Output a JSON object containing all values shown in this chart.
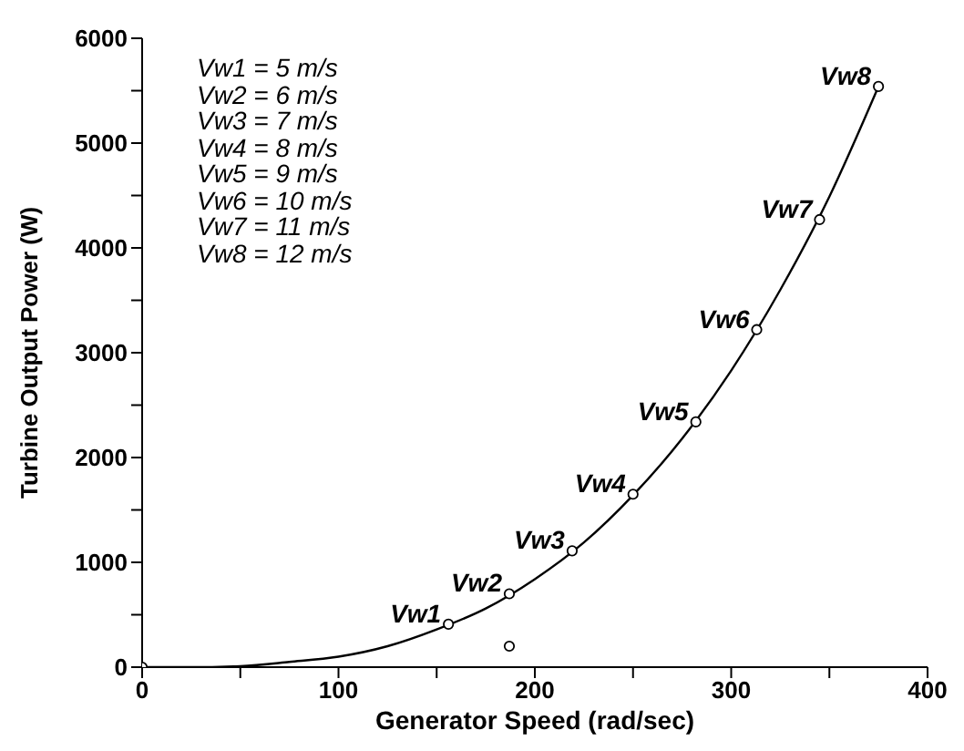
{
  "chart_data": {
    "type": "line",
    "xlabel": "Generator Speed (rad/sec)",
    "ylabel": "Turbine Output Power (W)",
    "xlim": [
      0,
      400
    ],
    "ylim": [
      0,
      6000
    ],
    "xticks": [
      0,
      {
        "value": 50,
        "label": null
      },
      100,
      {
        "value": 150,
        "label": null
      },
      200,
      {
        "value": 250,
        "label": null
      },
      300,
      {
        "value": 350,
        "label": null
      },
      400
    ],
    "yticks": [
      0,
      {
        "value": 500,
        "label": null
      },
      1000,
      {
        "value": 1500,
        "label": null
      },
      2000,
      {
        "value": 2500,
        "label": null
      },
      3000,
      {
        "value": 3500,
        "label": null
      },
      4000,
      {
        "value": 4500,
        "label": null
      },
      5000,
      {
        "value": 5500,
        "label": null
      },
      6000
    ],
    "grid": false,
    "series": [
      {
        "type": "line",
        "color": "#000000",
        "marker": "none",
        "x": [
          0,
          25,
          50,
          75,
          100,
          125,
          150,
          175,
          200,
          225,
          250,
          275,
          300,
          325,
          350,
          375
        ],
        "values": [
          0,
          0,
          10,
          50,
          100,
          200,
          360,
          560,
          840,
          1190,
          1640,
          2180,
          2830,
          3600,
          4490,
          5540
        ]
      },
      {
        "type": "scatter",
        "color": "#000000",
        "marker": "circle",
        "x": [
          0,
          156,
          187,
          219,
          250,
          282,
          313,
          345,
          375,
          187
        ],
        "values": [
          0,
          410,
          700,
          1110,
          1650,
          2340,
          3220,
          4270,
          5540,
          200
        ]
      }
    ],
    "annotations": [
      "Vw1 = 5 m/s",
      "Vw2 = 6 m/s",
      "Vw3 = 7 m/s",
      "Vw4 = 8 m/s",
      "Vw5 = 9 m/s",
      "Vw6 = 10 m/s",
      "Vw7 = 11 m/s",
      "Vw8 = 12 m/s",
      {
        "text": "Vw1",
        "x": 156,
        "y": 410
      },
      {
        "text": "Vw2",
        "x": 187,
        "y": 700
      },
      {
        "text": "Vw3",
        "x": 219,
        "y": 1110
      },
      {
        "text": "Vw4",
        "x": 250,
        "y": 1650
      },
      {
        "text": "Vw5",
        "x": 282,
        "y": 2340
      },
      {
        "text": "Vw6",
        "x": 313,
        "y": 3220
      },
      {
        "text": "Vw7",
        "x": 345,
        "y": 4270
      },
      {
        "text": "Vw8",
        "x": 375,
        "y": 5540
      }
    ]
  }
}
